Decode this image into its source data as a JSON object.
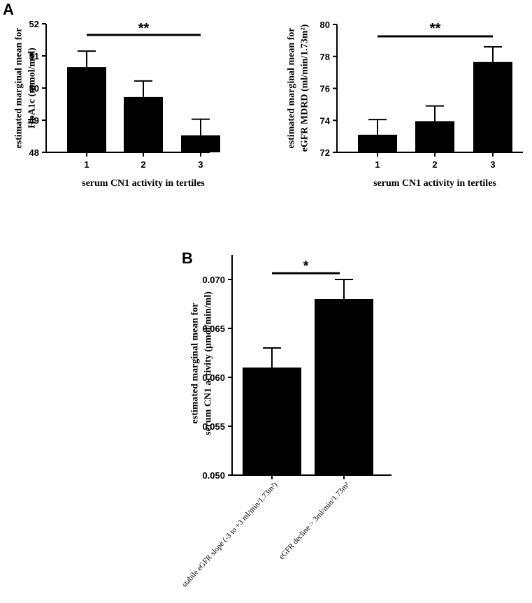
{
  "panel_labels": {
    "a": "A",
    "b": "B"
  },
  "chart_data": [
    {
      "type": "bar",
      "panel": "A",
      "categories": [
        "1",
        "2",
        "3"
      ],
      "values": [
        50.65,
        49.72,
        48.53
      ],
      "errors": [
        0.5,
        0.5,
        0.5
      ],
      "xlabel": "serum CN1 activity in tertiles",
      "ylabel_lines": [
        "estimated marginal mean for",
        "HbA1c (mmol/mol)"
      ],
      "ylim": [
        48,
        52
      ],
      "yticks": [
        "48",
        "49",
        "50",
        "51",
        "52"
      ],
      "significance": {
        "label": "**",
        "from": "1",
        "to": "3"
      },
      "grid": false,
      "bar_color": "#000000"
    },
    {
      "type": "bar",
      "panel": "A",
      "categories": [
        "1",
        "2",
        "3"
      ],
      "values": [
        73.1,
        73.95,
        77.65
      ],
      "errors": [
        0.95,
        0.95,
        0.95
      ],
      "xlabel": "serum CN1 activity in tertiles",
      "ylabel_lines": [
        "estimated marginal mean for",
        "eGFR MDRD (ml/min/1.73m²)"
      ],
      "ylim": [
        72,
        80
      ],
      "yticks": [
        "72",
        "74",
        "76",
        "78",
        "80"
      ],
      "significance": {
        "label": "**",
        "from": "1",
        "to": "3"
      },
      "grid": false,
      "bar_color": "#000000"
    },
    {
      "type": "bar",
      "panel": "B",
      "categories": [
        "stabile eGFR slope (-3 to +3 ml/min/1.73m²)",
        "eGFR decline > 3ml/min/1.73m²"
      ],
      "values": [
        0.061,
        0.068
      ],
      "errors": [
        0.002,
        0.002
      ],
      "xlabel": "",
      "ylabel_lines": [
        "estimated marginal mean for",
        "serum  CN1 activity (µmol/min/ml)"
      ],
      "ylim": [
        0.05,
        0.0725
      ],
      "yticks": [
        "0.050",
        "0.055",
        "0.060",
        "0.065",
        "0.070"
      ],
      "significance": {
        "label": "*",
        "from": "stabile eGFR slope (-3 to +3 ml/min/1.73m²)",
        "to": "eGFR decline > 3ml/min/1.73m²"
      },
      "grid": false,
      "bar_color": "#000000"
    }
  ]
}
